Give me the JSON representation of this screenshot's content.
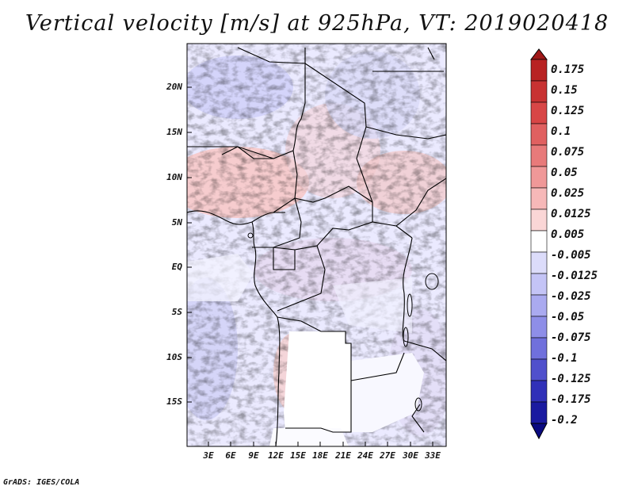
{
  "title": "Vertical velocity [m/s] at 925hPa, VT: 2019020418",
  "footer": "GrADS: IGES/COLA",
  "map": {
    "region": "Central Africa",
    "lon_range": [
      0,
      35
    ],
    "lat_range": [
      -20,
      25
    ],
    "y_ticks": [
      "20N",
      "15N",
      "10N",
      "5N",
      "EQ",
      "5S",
      "10S",
      "15S"
    ],
    "x_ticks": [
      "3E",
      "6E",
      "9E",
      "12E",
      "15E",
      "18E",
      "21E",
      "24E",
      "27E",
      "30E",
      "33E"
    ]
  },
  "colorbar": {
    "labels": [
      "0.175",
      "0.15",
      "0.125",
      "0.1",
      "0.075",
      "0.05",
      "0.025",
      "0.0125",
      "0.005",
      "-0.005",
      "-0.0125",
      "-0.025",
      "-0.05",
      "-0.075",
      "-0.1",
      "-0.125",
      "-0.175",
      "-0.2"
    ],
    "colors": [
      "#a01818",
      "#b82222",
      "#c83232",
      "#d84646",
      "#e06060",
      "#e87a7a",
      "#f09898",
      "#f6b8b8",
      "#fad6d6",
      "#ffffff",
      "#dcdcfa",
      "#c4c4f6",
      "#aaaaf0",
      "#8e8ee8",
      "#7070dc",
      "#5050cc",
      "#3030b8",
      "#1a1aa0",
      "#0a0a80"
    ]
  }
}
